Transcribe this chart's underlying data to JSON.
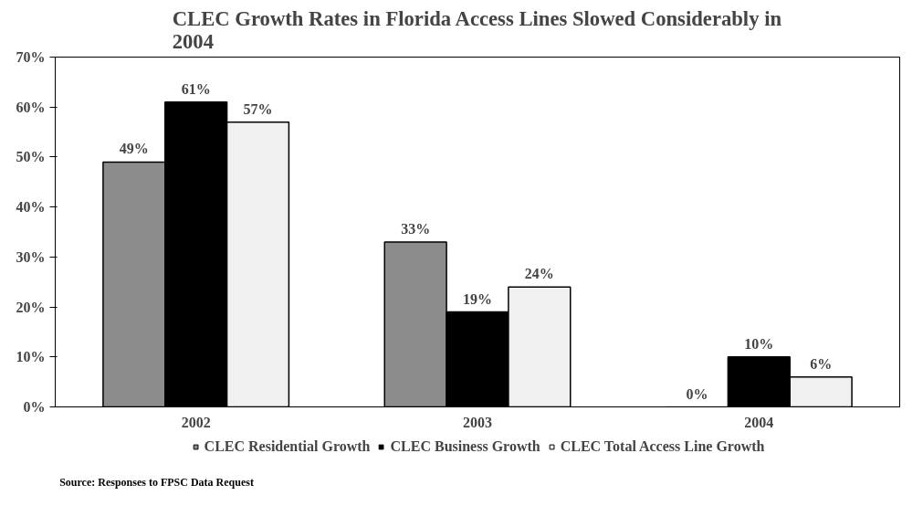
{
  "chart_data": {
    "type": "bar",
    "title": "CLEC Growth Rates in Florida Access Lines Slowed Considerably in 2004",
    "categories": [
      "2002",
      "2003",
      "2004"
    ],
    "series": [
      {
        "name": "CLEC Residential Growth",
        "color": "#8c8c8c",
        "values": [
          49,
          33,
          0
        ],
        "value_labels": [
          "49%",
          "33%",
          "0%"
        ]
      },
      {
        "name": "CLEC Business Growth",
        "color": "#000000",
        "values": [
          61,
          19,
          10
        ],
        "value_labels": [
          "61%",
          "19%",
          "10%"
        ]
      },
      {
        "name": "CLEC Total Access Line Growth",
        "color": "#f0f0f0",
        "values": [
          57,
          24,
          6
        ],
        "value_labels": [
          "57%",
          "24%",
          "6%"
        ]
      }
    ],
    "ylim": [
      0,
      70
    ],
    "yticks": [
      {
        "value": 0,
        "label": "0%"
      },
      {
        "value": 10,
        "label": "10%"
      },
      {
        "value": 20,
        "label": "20%"
      },
      {
        "value": 30,
        "label": "30%"
      },
      {
        "value": 40,
        "label": "40%"
      },
      {
        "value": 50,
        "label": "50%"
      },
      {
        "value": 60,
        "label": "60%"
      },
      {
        "value": 70,
        "label": "70%"
      }
    ],
    "grid": false,
    "legend": "bottom",
    "annotations": [
      "Source: Responses to FPSC Data Request"
    ]
  }
}
